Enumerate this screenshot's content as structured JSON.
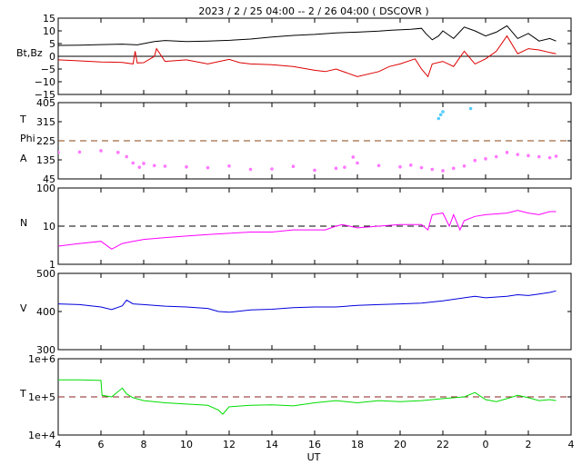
{
  "chart_data": {
    "type": "line",
    "title": "2023 /  2 / 25   04:00 --  2 / 26   04:00 ( DSCOVR )",
    "xlabel": "UT",
    "x_range_hours": [
      4,
      28
    ],
    "x_tick_labels": [
      "4",
      "6",
      "8",
      "10",
      "12",
      "14",
      "16",
      "18",
      "20",
      "22",
      "0",
      "2",
      "4"
    ],
    "panels": [
      {
        "id": "mag",
        "labels": [
          "Bt,Bz"
        ],
        "y_ticks": [
          "15",
          "10",
          "5",
          "0",
          "−5",
          "−10",
          "−15"
        ],
        "ylim": [
          -15,
          15
        ],
        "scale": "linear",
        "reference_line": {
          "value": 0,
          "style": "solid",
          "color": "#000000"
        },
        "series": [
          {
            "color": "#000000",
            "points": [
              [
                4,
                4.3
              ],
              [
                5,
                4.4
              ],
              [
                6,
                4.6
              ],
              [
                7,
                4.8
              ],
              [
                7.7,
                4.5
              ],
              [
                8,
                5
              ],
              [
                8.5,
                5.8
              ],
              [
                9,
                6.2
              ],
              [
                10,
                5.8
              ],
              [
                11,
                6
              ],
              [
                12,
                6.3
              ],
              [
                13,
                6.8
              ],
              [
                14,
                7.6
              ],
              [
                15,
                8.2
              ],
              [
                16,
                8.6
              ],
              [
                17,
                9.2
              ],
              [
                18,
                9.5
              ],
              [
                19,
                9.9
              ],
              [
                19.6,
                10.3
              ],
              [
                20.5,
                10.6
              ],
              [
                21,
                11
              ],
              [
                21.2,
                9
              ],
              [
                21.5,
                6.5
              ],
              [
                21.8,
                8
              ],
              [
                22,
                10
              ],
              [
                22.5,
                7
              ],
              [
                23,
                11.5
              ],
              [
                23.5,
                10
              ],
              [
                24,
                8
              ],
              [
                24.5,
                9.5
              ],
              [
                25,
                12
              ],
              [
                25.5,
                7
              ],
              [
                26,
                9
              ],
              [
                26.5,
                6
              ],
              [
                27,
                7
              ],
              [
                27.3,
                6
              ]
            ]
          },
          {
            "color": "#dd0000",
            "points": [
              [
                4,
                -1.4
              ],
              [
                5,
                -1.8
              ],
              [
                6,
                -2.2
              ],
              [
                7,
                -2.4
              ],
              [
                7.5,
                -3
              ],
              [
                7.6,
                2
              ],
              [
                7.7,
                -2.6
              ],
              [
                8,
                -2.5
              ],
              [
                8.5,
                0
              ],
              [
                8.6,
                3
              ],
              [
                9,
                -2
              ],
              [
                10,
                -1.4
              ],
              [
                11,
                -3
              ],
              [
                12,
                -1.2
              ],
              [
                12.5,
                -2.5
              ],
              [
                13,
                -3
              ],
              [
                14,
                -3.3
              ],
              [
                15,
                -4
              ],
              [
                16,
                -5.5
              ],
              [
                16.5,
                -6
              ],
              [
                17,
                -5
              ],
              [
                18,
                -8
              ],
              [
                19,
                -6
              ],
              [
                19.5,
                -4
              ],
              [
                20,
                -3
              ],
              [
                20.7,
                -1
              ],
              [
                21,
                -5
              ],
              [
                21.3,
                -8
              ],
              [
                21.5,
                -3
              ],
              [
                22,
                -2
              ],
              [
                22.5,
                -4
              ],
              [
                23,
                2
              ],
              [
                23.5,
                -3
              ],
              [
                24,
                -1
              ],
              [
                24.5,
                2
              ],
              [
                25,
                8
              ],
              [
                25.5,
                1
              ],
              [
                26,
                3
              ],
              [
                26.5,
                2.5
              ],
              [
                27,
                1.5
              ],
              [
                27.3,
                1
              ]
            ]
          }
        ]
      },
      {
        "id": "angles",
        "labels": [
          "T",
          "Phi",
          "A"
        ],
        "y_ticks": [
          "405",
          "315",
          "225",
          "135",
          "45"
        ],
        "ylim": [
          45,
          405
        ],
        "scale": "linear",
        "reference_line": {
          "value": 225,
          "style": "dashed",
          "color": "#8b4513"
        },
        "series": [
          {
            "color": "#ff77ff",
            "style": "points",
            "points": [
              [
                4,
                170
              ],
              [
                5,
                172
              ],
              [
                6,
                178
              ],
              [
                6.8,
                170
              ],
              [
                7.2,
                150
              ],
              [
                7.5,
                120
              ],
              [
                7.8,
                100
              ],
              [
                8,
                118
              ],
              [
                8.5,
                108
              ],
              [
                9,
                105
              ],
              [
                10,
                102
              ],
              [
                11,
                98
              ],
              [
                12,
                106
              ],
              [
                13,
                90
              ],
              [
                14,
                92
              ],
              [
                15,
                104
              ],
              [
                16,
                86
              ],
              [
                17,
                95
              ],
              [
                17.4,
                100
              ],
              [
                17.8,
                148
              ],
              [
                18,
                120
              ],
              [
                19,
                108
              ],
              [
                20,
                102
              ],
              [
                20.5,
                110
              ],
              [
                21,
                98
              ],
              [
                21.5,
                90
              ],
              [
                22,
                84
              ],
              [
                22.5,
                95
              ],
              [
                23,
                106
              ],
              [
                23.5,
                132
              ],
              [
                24,
                140
              ],
              [
                24.5,
                150
              ],
              [
                25,
                170
              ],
              [
                25.5,
                160
              ],
              [
                26,
                155
              ],
              [
                26.5,
                150
              ],
              [
                27,
                145
              ],
              [
                27.3,
                152
              ]
            ]
          },
          {
            "color": "#55ccff",
            "style": "points",
            "points": [
              [
                21.8,
                330
              ],
              [
                21.9,
                348
              ],
              [
                22,
                362
              ],
              [
                23.3,
                377
              ]
            ]
          }
        ]
      },
      {
        "id": "density",
        "labels": [
          "N"
        ],
        "y_ticks": [
          "100",
          "10",
          "1"
        ],
        "ylim": [
          1,
          100
        ],
        "scale": "log",
        "reference_line": {
          "value": 10,
          "style": "dashed",
          "color": "#000000"
        },
        "series": [
          {
            "color": "#ff00ff",
            "points": [
              [
                4,
                3
              ],
              [
                5,
                3.5
              ],
              [
                6,
                4
              ],
              [
                6.5,
                2.5
              ],
              [
                7,
                3.5
              ],
              [
                7.5,
                4
              ],
              [
                8,
                4.5
              ],
              [
                9,
                5
              ],
              [
                10,
                5.5
              ],
              [
                11,
                6
              ],
              [
                12,
                6.5
              ],
              [
                13,
                7
              ],
              [
                14,
                7
              ],
              [
                15,
                8
              ],
              [
                16,
                8
              ],
              [
                16.5,
                8
              ],
              [
                17,
                10
              ],
              [
                17.3,
                11
              ],
              [
                18,
                9
              ],
              [
                19,
                10
              ],
              [
                20,
                11
              ],
              [
                21,
                11
              ],
              [
                21.3,
                8
              ],
              [
                21.5,
                20
              ],
              [
                22,
                22
              ],
              [
                22.3,
                10
              ],
              [
                22.5,
                20
              ],
              [
                22.8,
                8
              ],
              [
                23,
                14
              ],
              [
                23.5,
                18
              ],
              [
                24,
                20
              ],
              [
                25,
                22
              ],
              [
                25.5,
                26
              ],
              [
                26,
                22
              ],
              [
                26.5,
                20
              ],
              [
                27,
                24
              ],
              [
                27.3,
                24
              ]
            ]
          }
        ]
      },
      {
        "id": "speed",
        "labels": [
          "V"
        ],
        "y_ticks": [
          "500",
          "400",
          "300"
        ],
        "ylim": [
          300,
          500
        ],
        "scale": "linear",
        "series": [
          {
            "color": "#0000dd",
            "points": [
              [
                4,
                420
              ],
              [
                5,
                418
              ],
              [
                6,
                412
              ],
              [
                6.5,
                405
              ],
              [
                7,
                415
              ],
              [
                7.2,
                430
              ],
              [
                7.5,
                420
              ],
              [
                8,
                418
              ],
              [
                9,
                414
              ],
              [
                10,
                412
              ],
              [
                11,
                408
              ],
              [
                11.5,
                400
              ],
              [
                12,
                398
              ],
              [
                13,
                404
              ],
              [
                14,
                406
              ],
              [
                15,
                410
              ],
              [
                16,
                412
              ],
              [
                17,
                412
              ],
              [
                18,
                416
              ],
              [
                19,
                418
              ],
              [
                20,
                420
              ],
              [
                21,
                422
              ],
              [
                22,
                428
              ],
              [
                23,
                436
              ],
              [
                23.5,
                440
              ],
              [
                24,
                436
              ],
              [
                25,
                440
              ],
              [
                25.5,
                444
              ],
              [
                26,
                442
              ],
              [
                26.5,
                446
              ],
              [
                27,
                450
              ],
              [
                27.3,
                454
              ]
            ]
          }
        ]
      },
      {
        "id": "temperature",
        "labels": [
          "T"
        ],
        "y_ticks": [
          "1e+6",
          "1e+5",
          "1e+4"
        ],
        "ylim": [
          10000,
          1000000
        ],
        "scale": "log",
        "reference_line": {
          "value": 100000,
          "style": "dashed",
          "color": "#8b2020"
        },
        "series": [
          {
            "color": "#00dd00",
            "points": [
              [
                4,
                280000
              ],
              [
                5,
                280000
              ],
              [
                6,
                270000
              ],
              [
                6.05,
                110000
              ],
              [
                6.5,
                100000
              ],
              [
                7,
                170000
              ],
              [
                7.2,
                120000
              ],
              [
                7.5,
                95000
              ],
              [
                8,
                80000
              ],
              [
                9,
                70000
              ],
              [
                10,
                65000
              ],
              [
                11,
                60000
              ],
              [
                11.5,
                45000
              ],
              [
                11.7,
                35000
              ],
              [
                12,
                55000
              ],
              [
                13,
                60000
              ],
              [
                14,
                62000
              ],
              [
                15,
                58000
              ],
              [
                16,
                70000
              ],
              [
                17,
                80000
              ],
              [
                18,
                70000
              ],
              [
                19,
                80000
              ],
              [
                20,
                75000
              ],
              [
                21,
                80000
              ],
              [
                22,
                90000
              ],
              [
                23,
                100000
              ],
              [
                23.5,
                130000
              ],
              [
                24,
                85000
              ],
              [
                24.5,
                75000
              ],
              [
                25,
                90000
              ],
              [
                25.5,
                110000
              ],
              [
                26,
                95000
              ],
              [
                26.5,
                80000
              ],
              [
                27,
                85000
              ],
              [
                27.3,
                80000
              ]
            ]
          }
        ]
      }
    ]
  }
}
